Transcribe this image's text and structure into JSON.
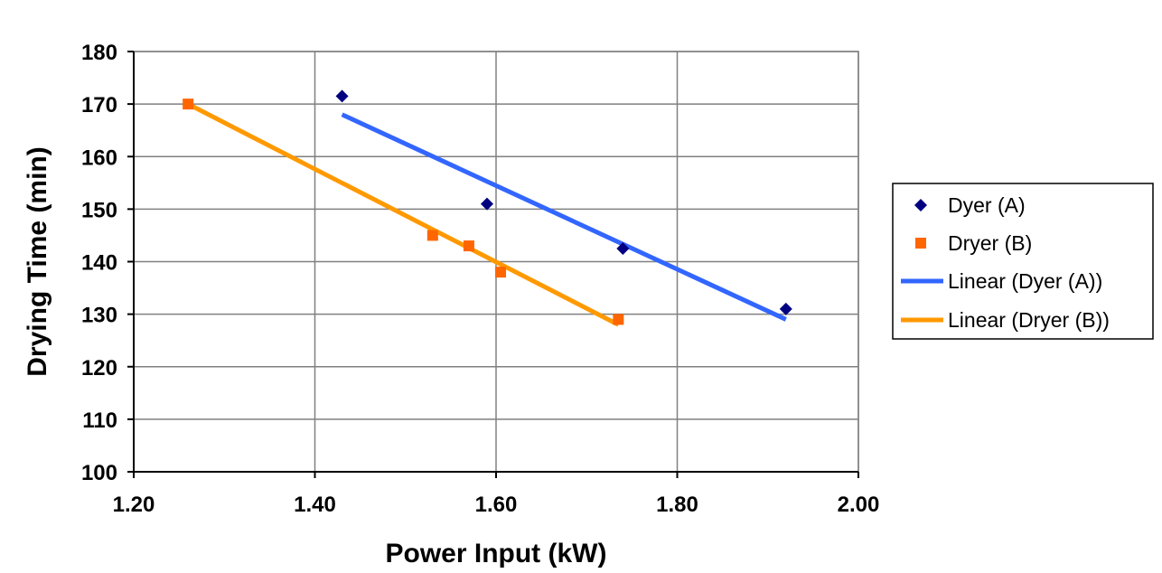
{
  "chart_data": {
    "type": "scatter",
    "title": "",
    "xlabel": "Power Input (kW)",
    "ylabel": "Drying Time (min)",
    "xlim": [
      1.2,
      2.0
    ],
    "ylim": [
      100,
      180
    ],
    "x_ticks": [
      "1.20",
      "1.40",
      "1.60",
      "1.80",
      "2.00"
    ],
    "y_ticks": [
      "100",
      "110",
      "120",
      "130",
      "140",
      "150",
      "160",
      "170",
      "180"
    ],
    "grid": true,
    "legend_position": "right",
    "series": [
      {
        "name": "Dyer (A)",
        "marker": "diamond",
        "color": "#000080",
        "points": [
          [
            1.43,
            171.5
          ],
          [
            1.59,
            151
          ],
          [
            1.74,
            142.5
          ],
          [
            1.92,
            131
          ]
        ]
      },
      {
        "name": "Dryer (B)",
        "marker": "square",
        "color": "#FF6600",
        "points": [
          [
            1.26,
            170
          ],
          [
            1.53,
            145
          ],
          [
            1.57,
            143
          ],
          [
            1.605,
            138
          ],
          [
            1.735,
            129
          ]
        ]
      }
    ],
    "trendlines": [
      {
        "name": "Linear (Dyer (A))",
        "color": "#3366FF",
        "from": [
          1.43,
          168
        ],
        "to": [
          1.92,
          129
        ]
      },
      {
        "name": "Linear (Dryer (B))",
        "color": "#FF9900",
        "from": [
          1.26,
          170
        ],
        "to": [
          1.735,
          128
        ]
      }
    ]
  }
}
